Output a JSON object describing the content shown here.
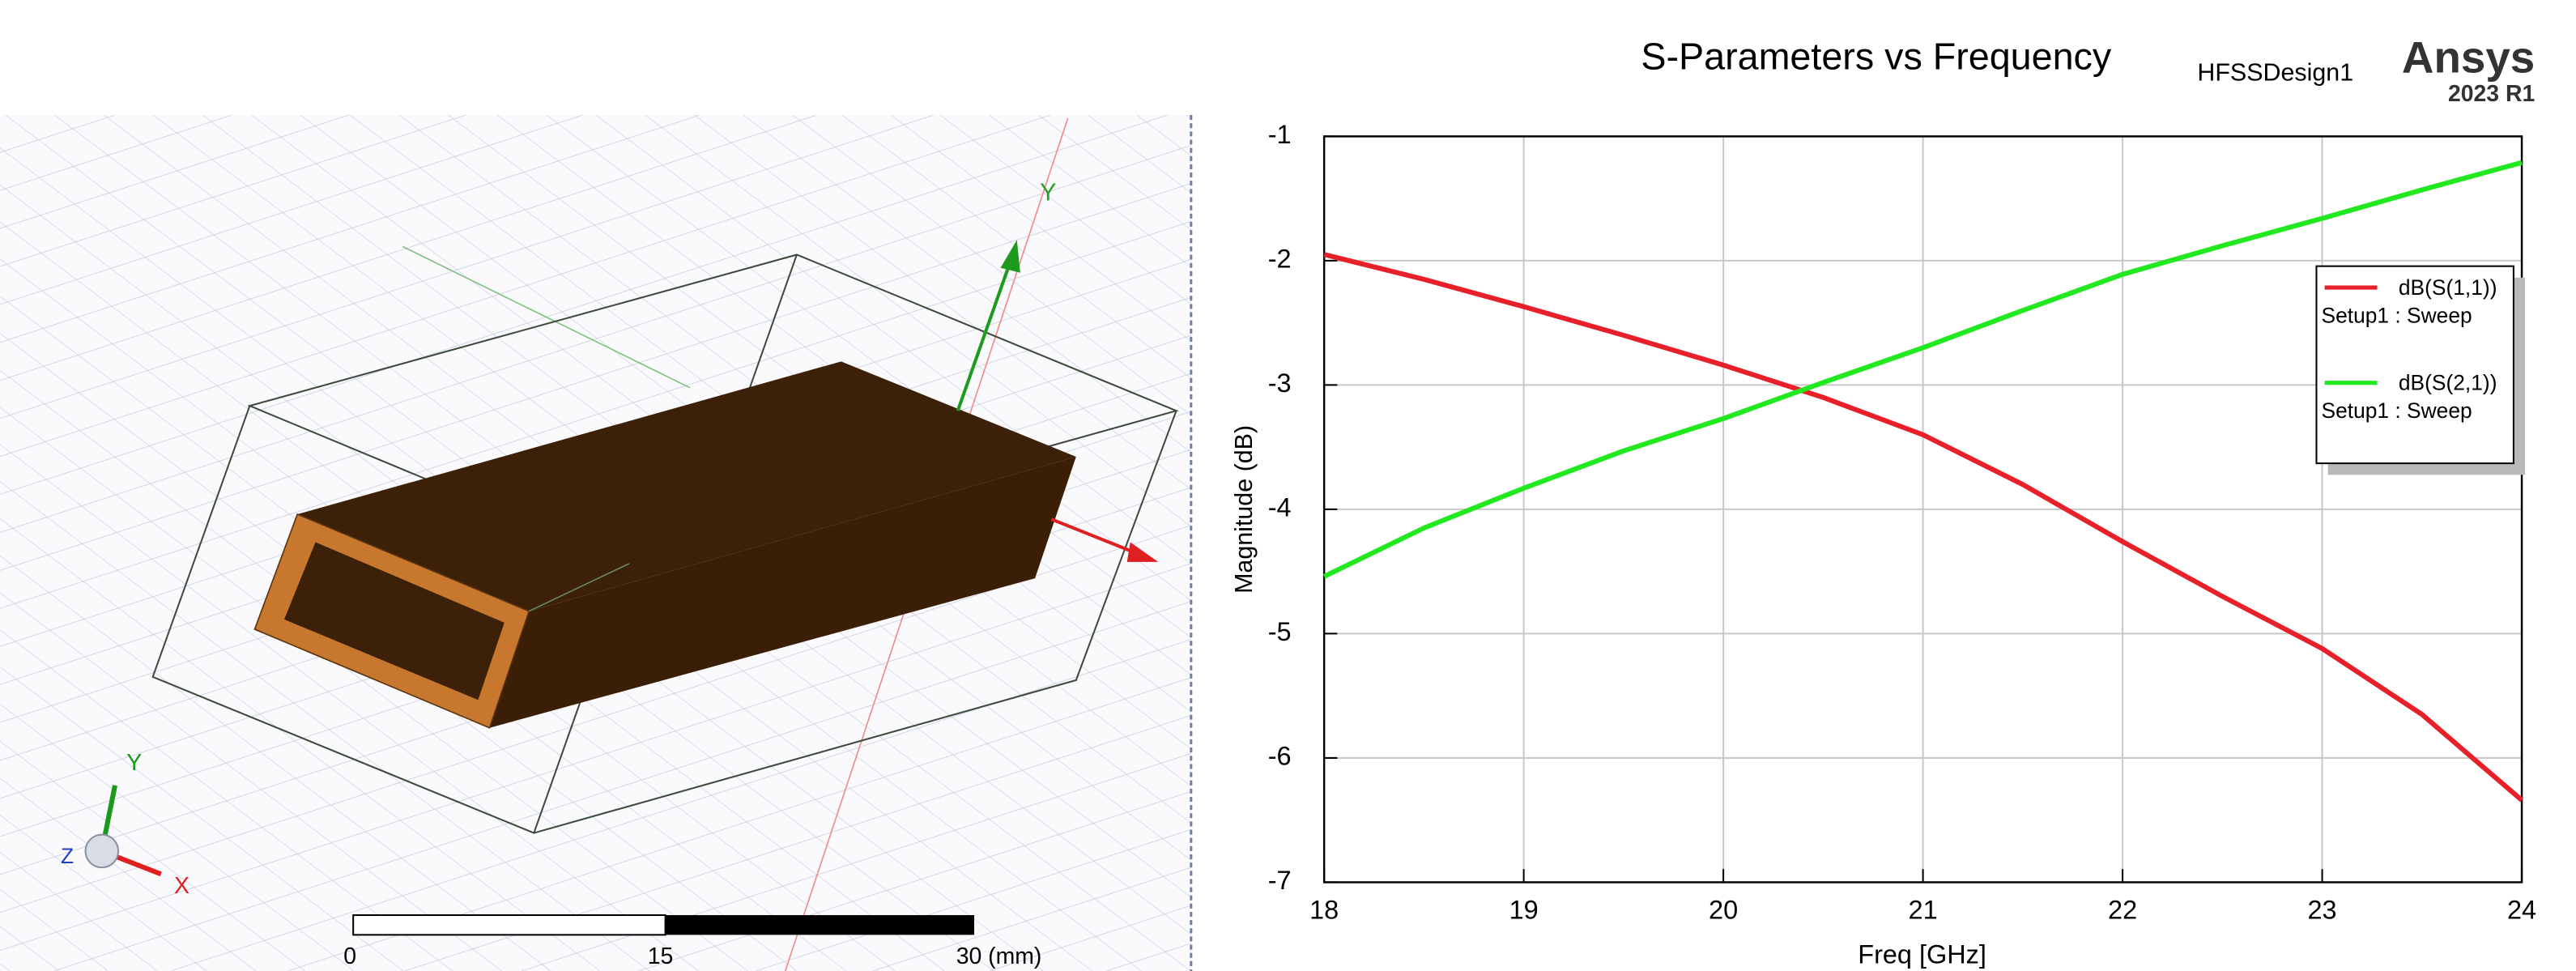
{
  "model_view": {
    "axis_label": "Y",
    "triad": {
      "x": "X",
      "y": "Y",
      "z": "Z"
    },
    "scale_bar": {
      "labels": [
        "0",
        "15",
        "30 (mm)"
      ]
    }
  },
  "chart_data": {
    "type": "line",
    "title": "S-Parameters vs Frequency",
    "design": "HFSSDesign1",
    "brand": "Ansys",
    "version": "2023 R1",
    "x_label": "Freq [GHz]",
    "y_label": "Magnitude (dB)",
    "x": [
      18,
      18.5,
      19,
      19.5,
      20,
      20.5,
      21,
      21.5,
      22,
      22.5,
      23,
      23.5,
      24
    ],
    "series": [
      {
        "name": "dB(S(1,1))",
        "subtitle": "Setup1 : Sweep",
        "color": "#e8202a",
        "values": [
          -1.95,
          -2.15,
          -2.37,
          -2.6,
          -2.84,
          -3.1,
          -3.4,
          -3.8,
          -4.26,
          -4.7,
          -5.12,
          -5.65,
          -6.34
        ]
      },
      {
        "name": "dB(S(2,1))",
        "subtitle": "Setup1 : Sweep",
        "color": "#22e81f",
        "values": [
          -4.54,
          -4.15,
          -3.83,
          -3.53,
          -3.27,
          -2.98,
          -2.7,
          -2.4,
          -2.11,
          -1.88,
          -1.66,
          -1.43,
          -1.21
        ]
      }
    ],
    "xlim": [
      18,
      24
    ],
    "ylim": [
      -7,
      -1
    ],
    "xticks": [
      18,
      19,
      20,
      21,
      22,
      23,
      24
    ],
    "yticks": [
      -1,
      -2,
      -3,
      -4,
      -5,
      -6,
      -7
    ],
    "grid": true,
    "legend": "upper right"
  }
}
